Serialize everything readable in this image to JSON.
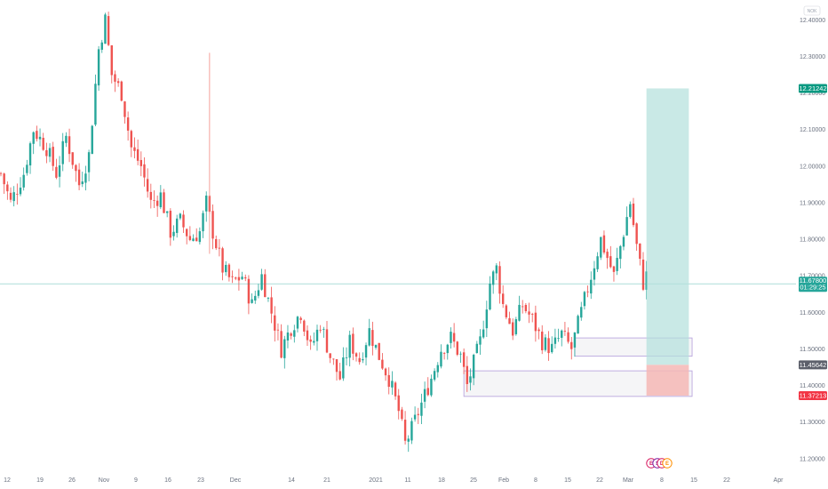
{
  "chart_data": {
    "type": "candlestick",
    "symbol_badge": "NOK",
    "y_ticks": [
      "12.40000",
      "12.30000",
      "12.20000",
      "12.10000",
      "12.00000",
      "11.90000",
      "11.80000",
      "11.70000",
      "11.60000",
      "11.50000",
      "11.40000",
      "11.30000",
      "11.20000"
    ],
    "x_ticks": [
      "12",
      "19",
      "26",
      "Nov",
      "9",
      "16",
      "23",
      "Dec",
      "14",
      "21",
      "2021",
      "11",
      "18",
      "25",
      "Feb",
      "8",
      "15",
      "22",
      "Mar",
      "8",
      "15",
      "22",
      "Apr"
    ],
    "ylim": [
      11.18,
      12.43
    ],
    "price_path": [
      [
        0,
        11.98
      ],
      [
        3,
        11.9
      ],
      [
        7,
        11.98
      ],
      [
        10,
        12.1
      ],
      [
        14,
        12.05
      ],
      [
        17,
        11.98
      ],
      [
        20,
        12.08
      ],
      [
        24,
        11.95
      ],
      [
        27,
        12.03
      ],
      [
        30,
        12.32
      ],
      [
        32,
        12.4
      ],
      [
        34,
        12.25
      ],
      [
        37,
        12.2
      ],
      [
        40,
        12.05
      ],
      [
        43,
        12.0
      ],
      [
        46,
        11.9
      ],
      [
        49,
        11.92
      ],
      [
        52,
        11.82
      ],
      [
        55,
        11.85
      ],
      [
        58,
        11.8
      ],
      [
        61,
        11.82
      ],
      [
        63,
        11.9
      ],
      [
        65,
        11.82
      ],
      [
        68,
        11.72
      ],
      [
        71,
        11.68
      ],
      [
        74,
        11.7
      ],
      [
        77,
        11.62
      ],
      [
        80,
        11.7
      ],
      [
        83,
        11.6
      ],
      [
        86,
        11.5
      ],
      [
        89,
        11.56
      ],
      [
        92,
        11.6
      ],
      [
        95,
        11.5
      ],
      [
        98,
        11.57
      ],
      [
        101,
        11.48
      ],
      [
        104,
        11.42
      ],
      [
        107,
        11.52
      ],
      [
        110,
        11.47
      ],
      [
        113,
        11.55
      ],
      [
        116,
        11.48
      ],
      [
        119,
        11.42
      ],
      [
        122,
        11.33
      ],
      [
        124,
        11.24
      ],
      [
        126,
        11.28
      ],
      [
        129,
        11.35
      ],
      [
        132,
        11.42
      ],
      [
        135,
        11.5
      ],
      [
        138,
        11.53
      ],
      [
        141,
        11.48
      ],
      [
        143,
        11.4
      ],
      [
        145,
        11.46
      ],
      [
        147,
        11.52
      ],
      [
        150,
        11.68
      ],
      [
        152,
        11.72
      ],
      [
        154,
        11.62
      ],
      [
        157,
        11.55
      ],
      [
        160,
        11.62
      ],
      [
        163,
        11.58
      ],
      [
        166,
        11.52
      ],
      [
        169,
        11.5
      ],
      [
        172,
        11.54
      ],
      [
        175,
        11.5
      ],
      [
        178,
        11.6
      ],
      [
        181,
        11.7
      ],
      [
        184,
        11.8
      ],
      [
        186,
        11.75
      ],
      [
        188,
        11.7
      ],
      [
        190,
        11.78
      ],
      [
        192,
        11.86
      ],
      [
        193,
        11.9
      ],
      [
        195,
        11.78
      ],
      [
        197,
        11.68
      ],
      [
        198,
        11.7
      ]
    ],
    "last_price": "11.67800",
    "countdown": "01:29:25",
    "price_tags": [
      {
        "label": "12.21242",
        "value": 12.21242,
        "color": "#089981"
      },
      {
        "label": "11.45642",
        "value": 11.45642,
        "color": "#5d606b"
      },
      {
        "label": "11.37213",
        "value": 11.37213,
        "color": "#f23645"
      }
    ],
    "position": {
      "entry": 11.45642,
      "target": 12.21242,
      "stop": 11.37213,
      "start_bar": 198,
      "end_bar": 211
    },
    "zones": [
      {
        "from_bar": 176,
        "to_bar": 212,
        "top": 11.53,
        "bottom": 11.48
      },
      {
        "from_bar": 142,
        "to_bar": 212,
        "top": 11.44,
        "bottom": 11.37
      }
    ],
    "vertical_marker": {
      "bar": 64,
      "top": 12.31,
      "bottom": 11.76
    },
    "events": [
      "E",
      "S",
      "D",
      "E"
    ],
    "colors": {
      "up": "#26a69a",
      "down": "#ef5350",
      "target_zone": "#b2dfdb",
      "stop_zone": "#f5b7b5",
      "last_line": "#26a69a"
    }
  }
}
